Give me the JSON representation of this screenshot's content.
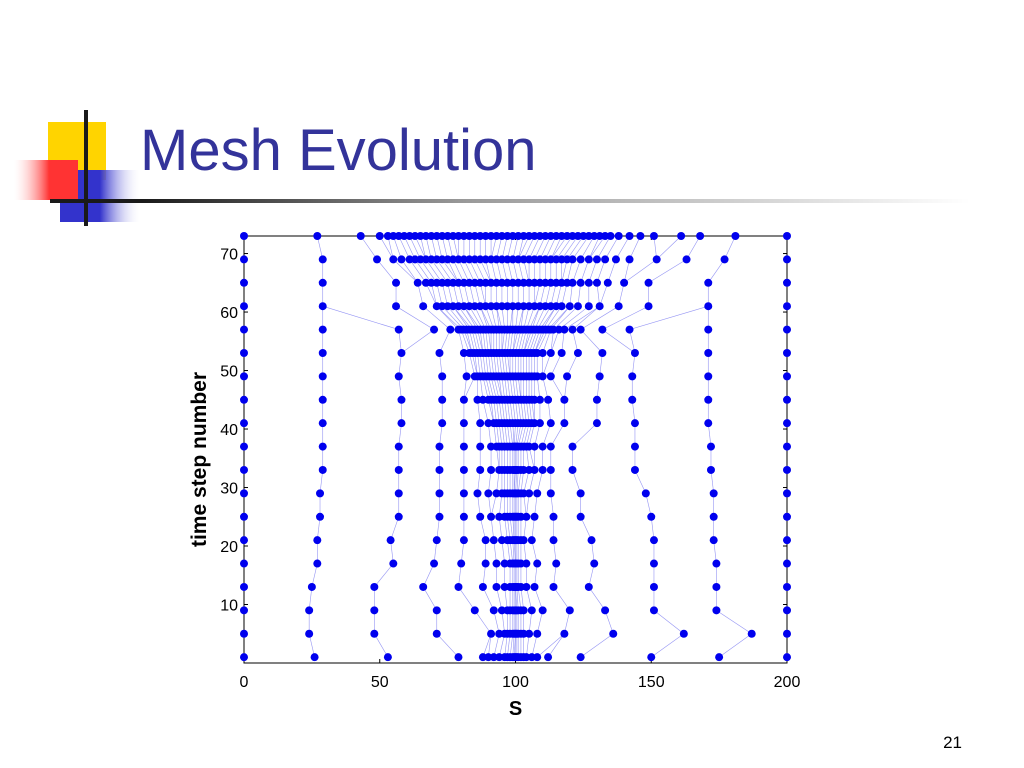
{
  "slide": {
    "title": "Mesh Evolution",
    "number": "21"
  },
  "colors": {
    "title": "#33339a",
    "mesh": "#0000ee",
    "mesh_line": "#7a7af0",
    "logo_yellow": "#ffd400",
    "logo_red": "#ff3333",
    "logo_blue": "#3333cc"
  },
  "chart_data": {
    "type": "scatter",
    "xlabel": "S",
    "ylabel": "time step number",
    "xlim": [
      0,
      200
    ],
    "ylim": [
      0,
      73
    ],
    "xticks": [
      0,
      50,
      100,
      150,
      200
    ],
    "yticks": [
      10,
      20,
      30,
      40,
      50,
      60,
      70
    ],
    "grid": false,
    "marker": "filled circle",
    "connect_same_index_nodes": true,
    "rows": [
      {
        "t": 1,
        "x": [
          0,
          26,
          53,
          79,
          88,
          90,
          92,
          94,
          96,
          97,
          98,
          99,
          99.5,
          100,
          100.5,
          101,
          102,
          103,
          104,
          106,
          108,
          112,
          124,
          150,
          175,
          200
        ]
      },
      {
        "t": 5,
        "x": [
          0,
          24,
          48,
          71,
          91,
          94,
          96,
          97,
          98,
          99,
          99.5,
          100,
          100.5,
          101,
          102,
          103,
          105,
          108,
          118,
          136,
          162,
          187,
          200
        ]
      },
      {
        "t": 9,
        "x": [
          0,
          24,
          48,
          71,
          85,
          92,
          95,
          97,
          98,
          99,
          99.5,
          100,
          100.5,
          101,
          102,
          103,
          106,
          110,
          120,
          133,
          151,
          174,
          200
        ]
      },
      {
        "t": 13,
        "x": [
          0,
          25,
          48,
          66,
          79,
          88,
          93,
          96,
          98,
          99,
          99.5,
          100,
          100.5,
          101,
          102,
          104,
          107,
          114,
          127,
          151,
          174,
          200
        ]
      },
      {
        "t": 17,
        "x": [
          0,
          27,
          55,
          70,
          80,
          89,
          93,
          96,
          98,
          99,
          99.5,
          100,
          100.5,
          101,
          102,
          104,
          108,
          115,
          129,
          151,
          174,
          200
        ]
      },
      {
        "t": 21,
        "x": [
          0,
          27,
          54,
          71,
          81,
          89,
          92,
          95,
          97,
          98,
          99,
          99.5,
          100,
          100.5,
          101,
          102,
          103,
          106,
          114,
          128,
          151,
          173,
          200
        ]
      },
      {
        "t": 25,
        "x": [
          0,
          28,
          57,
          72,
          81,
          87,
          91,
          94,
          96,
          97,
          98,
          99,
          99.5,
          100,
          100.5,
          101,
          102,
          104,
          107,
          114,
          124,
          150,
          173,
          200
        ]
      },
      {
        "t": 29,
        "x": [
          0,
          28,
          57,
          72,
          81,
          86,
          90,
          93,
          95,
          96,
          97,
          98,
          99,
          99.5,
          100,
          100.5,
          101,
          102,
          103,
          105,
          108,
          113,
          124,
          148,
          173,
          200
        ]
      },
      {
        "t": 33,
        "x": [
          0,
          29,
          57,
          72,
          81,
          87,
          91,
          94,
          95,
          96,
          97,
          98,
          99,
          99.5,
          100,
          100.5,
          101,
          102,
          103,
          105,
          107,
          110,
          113,
          121,
          144,
          172,
          200
        ]
      },
      {
        "t": 37,
        "x": [
          0,
          29,
          57,
          72,
          81,
          87,
          91,
          93,
          94,
          95,
          96,
          97,
          98,
          99,
          99.5,
          100,
          100.5,
          101,
          102,
          103,
          104,
          105,
          107,
          110,
          113,
          121,
          144,
          172,
          200
        ]
      },
      {
        "t": 41,
        "x": [
          0,
          29,
          58,
          73,
          81,
          87,
          90,
          92,
          93,
          94,
          95,
          96,
          97,
          98,
          99,
          100,
          101,
          102,
          103,
          104,
          105,
          106,
          107,
          109,
          113,
          118,
          130,
          144,
          171,
          200
        ]
      },
      {
        "t": 45,
        "x": [
          0,
          29,
          58,
          73,
          81,
          86,
          88,
          90,
          91,
          92,
          93,
          94,
          95,
          96,
          97,
          98,
          99,
          100,
          101,
          102,
          103,
          104,
          105,
          106,
          107,
          109,
          112,
          118,
          130,
          143,
          171,
          200
        ]
      },
      {
        "t": 49,
        "x": [
          0,
          29,
          57,
          73,
          82,
          85,
          86,
          87,
          88,
          89,
          90,
          91,
          92,
          93,
          94,
          95,
          96,
          97,
          98,
          99,
          100,
          101,
          102,
          103,
          104,
          105,
          106,
          107,
          108,
          110,
          113,
          119,
          131,
          143,
          171,
          200
        ]
      },
      {
        "t": 53,
        "x": [
          0,
          29,
          58,
          72,
          81,
          83,
          84,
          85,
          86,
          87,
          88,
          89,
          90,
          91,
          92,
          93,
          94,
          95,
          96,
          97,
          98,
          99,
          100,
          101,
          102,
          103,
          104,
          105,
          106,
          107,
          108,
          110,
          113,
          117,
          123,
          132,
          144,
          171,
          200
        ]
      },
      {
        "t": 57,
        "x": [
          0,
          29,
          57,
          70,
          76,
          79,
          80,
          81,
          82,
          83,
          84,
          85,
          86,
          87,
          88,
          89,
          90,
          91,
          92,
          93,
          94,
          95,
          96,
          97,
          98,
          99,
          100,
          101,
          102,
          103,
          104,
          105,
          106,
          107,
          108,
          109,
          110,
          111,
          112,
          113,
          114,
          116,
          118,
          121,
          124,
          132,
          142,
          171,
          200
        ]
      },
      {
        "t": 61,
        "x": [
          0,
          29,
          56,
          66,
          71,
          73,
          75,
          77,
          79,
          81,
          83,
          85,
          87,
          89,
          91,
          93,
          95,
          97,
          99,
          101,
          103,
          105,
          107,
          109,
          111,
          113,
          115,
          117,
          120,
          123,
          127,
          131,
          138,
          149,
          171,
          200
        ]
      },
      {
        "t": 65,
        "x": [
          0,
          29,
          56,
          64,
          67,
          69,
          71,
          73,
          75,
          77,
          79,
          81,
          83,
          85,
          87,
          89,
          91,
          93,
          95,
          97,
          99,
          101,
          103,
          105,
          107,
          109,
          111,
          113,
          115,
          117,
          119,
          121,
          124,
          127,
          130,
          134,
          140,
          149,
          171,
          200
        ]
      },
      {
        "t": 69,
        "x": [
          0,
          29,
          49,
          55,
          58,
          61,
          63,
          65,
          67,
          69,
          71,
          73,
          75,
          77,
          79,
          81,
          83,
          85,
          87,
          89,
          91,
          93,
          95,
          97,
          99,
          101,
          103,
          105,
          107,
          109,
          111,
          113,
          115,
          117,
          119,
          121,
          124,
          127,
          130,
          133,
          137,
          142,
          152,
          163,
          177,
          200
        ]
      },
      {
        "t": 73,
        "x": [
          0,
          27,
          43,
          50,
          53,
          55,
          57,
          59,
          61,
          63,
          65,
          67,
          69,
          71,
          73,
          75,
          77,
          79,
          81,
          83,
          85,
          87,
          89,
          91,
          93,
          95,
          97,
          99,
          101,
          103,
          105,
          107,
          109,
          111,
          113,
          115,
          117,
          119,
          121,
          123,
          125,
          127,
          129,
          131,
          133,
          135,
          138,
          142,
          146,
          151,
          161,
          168,
          181,
          200
        ]
      }
    ]
  }
}
